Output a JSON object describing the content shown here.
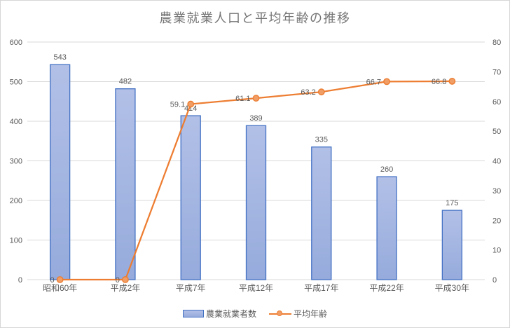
{
  "chart_data": {
    "type": "bar",
    "subtype": "combo-bar-line",
    "title": "農業就業人口と平均年齢の推移",
    "categories": [
      "昭和60年",
      "平成2年",
      "平成7年",
      "平成12年",
      "平成17年",
      "平成22年",
      "平成30年"
    ],
    "series": [
      {
        "name": "農業就業者数",
        "type": "bar",
        "axis": "left",
        "values": [
          543,
          482,
          414,
          389,
          335,
          260,
          175
        ]
      },
      {
        "name": "平均年齢",
        "type": "line",
        "axis": "right",
        "values": [
          0,
          0,
          59.1,
          61.1,
          63.2,
          66.7,
          66.8
        ]
      }
    ],
    "left_axis": {
      "min": 0,
      "max": 600,
      "step": 100
    },
    "right_axis": {
      "min": 0,
      "max": 80,
      "step": 10
    },
    "grid": true,
    "legend_position": "bottom",
    "colors": {
      "bar_fill_top": "#b2c0e7",
      "bar_fill_bottom": "#96abdc",
      "bar_border": "#4472c4",
      "line": "#ed7d31",
      "marker_fill": "#f09e66",
      "grid": "#d9d9d9",
      "label": "#595959",
      "title": "#757575"
    }
  }
}
